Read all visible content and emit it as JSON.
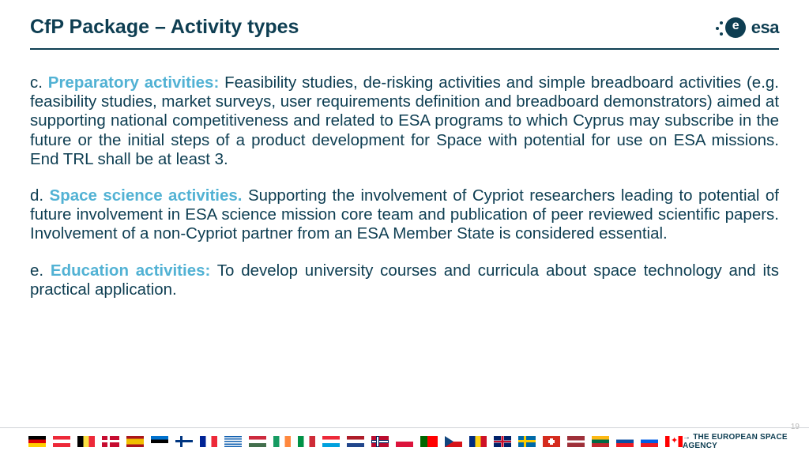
{
  "header": {
    "title": "CfP Package – Activity types",
    "logo_text": "esa"
  },
  "pagenum": "19",
  "tagline": "THE EUROPEAN SPACE AGENCY",
  "colors": {
    "primary": "#0e3e52",
    "accent": "#52b2d4",
    "background": "#ffffff",
    "divider": "#d0d4d7",
    "pagenum": "#b9b9b9"
  },
  "typography": {
    "title_fontsize": 25,
    "body_fontsize": 20.5,
    "body_lineheight": 1.18,
    "tagline_fontsize": 10
  },
  "paragraphs": {
    "c": {
      "letter": "c. ",
      "head": "Preparatory activities:",
      "body": " Feasibility studies, de-risking activities and simple breadboard activities (e.g. feasibility studies, market surveys, user requirements definition and breadboard demonstrators) aimed at supporting national competitiveness and related to ESA programs to which Cyprus may subscribe in the future or the initial steps of a product development for Space with potential for use on ESA missions. End TRL shall be at least 3."
    },
    "d": {
      "letter": "d. ",
      "head": "Space science activities.",
      "body": " Supporting the involvement of Cypriot researchers leading to potential of future involvement in ESA science mission core team and publication of peer reviewed scientific papers. Involvement of a non-Cypriot partner from an ESA Member State is considered essential."
    },
    "e": {
      "letter": "e. ",
      "head": "Education activities:",
      "body": " To develop university courses and curricula about space technology and its practical application."
    }
  },
  "flags": [
    "de",
    "at",
    "be",
    "dk",
    "es",
    "ee",
    "fi",
    "fr",
    "gr",
    "hu",
    "ie",
    "it",
    "lu",
    "nl",
    "no",
    "pl",
    "pt",
    "cz",
    "ro",
    "gb",
    "se",
    "ch",
    "lv",
    "lt",
    "sk",
    "si",
    "ca"
  ]
}
